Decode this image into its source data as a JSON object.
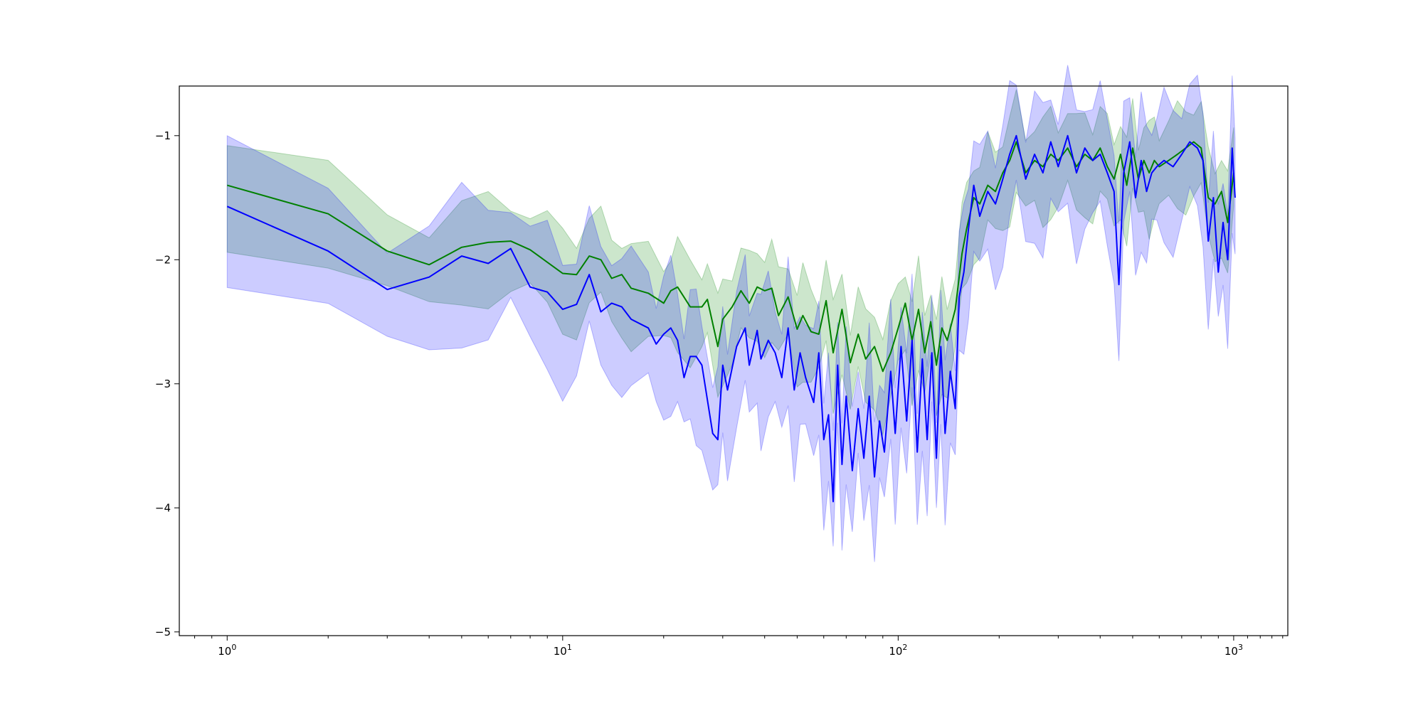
{
  "chart_data": {
    "type": "line",
    "title": "",
    "xlabel": "",
    "ylabel": "",
    "xscale": "log",
    "xlim": [
      0.72,
      1450
    ],
    "ylim": [
      -5.03,
      -0.6
    ],
    "grid": false,
    "legend": "none",
    "x_ticks": [
      {
        "value": 1,
        "base": "10",
        "exp": "0"
      },
      {
        "value": 10,
        "base": "10",
        "exp": "1"
      },
      {
        "value": 100,
        "base": "10",
        "exp": "2"
      },
      {
        "value": 1000,
        "base": "10",
        "exp": "3"
      }
    ],
    "y_ticks": [
      {
        "value": -1,
        "label": "−1"
      },
      {
        "value": -2,
        "label": "−2"
      },
      {
        "value": -3,
        "label": "−3"
      },
      {
        "value": -4,
        "label": "−4"
      },
      {
        "value": -5,
        "label": "−5"
      }
    ],
    "series": [
      {
        "color": "#008000",
        "band_color": "#008000",
        "band_opacity": 0.2,
        "band_width": 0.4,
        "points": [
          [
            1,
            -1.4
          ],
          [
            2,
            -1.63
          ],
          [
            3,
            -1.93
          ],
          [
            4,
            -2.04
          ],
          [
            5,
            -1.9
          ],
          [
            6,
            -1.86
          ],
          [
            7,
            -1.85
          ],
          [
            8,
            -1.92
          ],
          [
            9,
            -2.02
          ],
          [
            10,
            -2.11
          ],
          [
            11,
            -2.12
          ],
          [
            12,
            -1.97
          ],
          [
            13,
            -2.0
          ],
          [
            14,
            -2.15
          ],
          [
            15,
            -2.12
          ],
          [
            16,
            -2.23
          ],
          [
            18,
            -2.27
          ],
          [
            20,
            -2.35
          ],
          [
            21,
            -2.25
          ],
          [
            22,
            -2.22
          ],
          [
            24,
            -2.38
          ],
          [
            26,
            -2.38
          ],
          [
            27,
            -2.32
          ],
          [
            29,
            -2.7
          ],
          [
            30,
            -2.48
          ],
          [
            32,
            -2.38
          ],
          [
            34,
            -2.25
          ],
          [
            36,
            -2.35
          ],
          [
            38,
            -2.22
          ],
          [
            40,
            -2.25
          ],
          [
            42,
            -2.23
          ],
          [
            44,
            -2.45
          ],
          [
            47,
            -2.3
          ],
          [
            50,
            -2.56
          ],
          [
            52,
            -2.45
          ],
          [
            55,
            -2.58
          ],
          [
            58,
            -2.6
          ],
          [
            61,
            -2.33
          ],
          [
            64,
            -2.75
          ],
          [
            68,
            -2.4
          ],
          [
            72,
            -2.83
          ],
          [
            76,
            -2.6
          ],
          [
            80,
            -2.8
          ],
          [
            85,
            -2.7
          ],
          [
            90,
            -2.9
          ],
          [
            95,
            -2.75
          ],
          [
            100,
            -2.55
          ],
          [
            105,
            -2.35
          ],
          [
            110,
            -2.65
          ],
          [
            115,
            -2.4
          ],
          [
            120,
            -2.75
          ],
          [
            125,
            -2.5
          ],
          [
            130,
            -2.85
          ],
          [
            135,
            -2.55
          ],
          [
            140,
            -2.65
          ],
          [
            148,
            -2.4
          ],
          [
            155,
            -1.95
          ],
          [
            160,
            -1.75
          ],
          [
            168,
            -1.5
          ],
          [
            175,
            -1.55
          ],
          [
            185,
            -1.4
          ],
          [
            195,
            -1.45
          ],
          [
            205,
            -1.3
          ],
          [
            215,
            -1.2
          ],
          [
            225,
            -1.05
          ],
          [
            240,
            -1.3
          ],
          [
            255,
            -1.2
          ],
          [
            270,
            -1.25
          ],
          [
            285,
            -1.15
          ],
          [
            300,
            -1.2
          ],
          [
            320,
            -1.1
          ],
          [
            340,
            -1.25
          ],
          [
            360,
            -1.15
          ],
          [
            380,
            -1.2
          ],
          [
            400,
            -1.1
          ],
          [
            420,
            -1.25
          ],
          [
            440,
            -1.35
          ],
          [
            460,
            -1.15
          ],
          [
            480,
            -1.4
          ],
          [
            500,
            -1.1
          ],
          [
            520,
            -1.35
          ],
          [
            540,
            -1.2
          ],
          [
            560,
            -1.3
          ],
          [
            580,
            -1.2
          ],
          [
            600,
            -1.25
          ],
          [
            640,
            -1.2
          ],
          [
            680,
            -1.15
          ],
          [
            720,
            -1.1
          ],
          [
            760,
            -1.05
          ],
          [
            800,
            -1.1
          ],
          [
            840,
            -1.5
          ],
          [
            880,
            -1.55
          ],
          [
            920,
            -1.45
          ],
          [
            960,
            -1.7
          ],
          [
            1000,
            -1.3
          ]
        ]
      },
      {
        "color": "#0000ff",
        "band_color": "#0000ff",
        "band_opacity": 0.2,
        "band_width": 0.55,
        "points": [
          [
            1,
            -1.57
          ],
          [
            2,
            -1.93
          ],
          [
            3,
            -2.24
          ],
          [
            4,
            -2.14
          ],
          [
            5,
            -1.97
          ],
          [
            6,
            -2.03
          ],
          [
            7,
            -1.91
          ],
          [
            8,
            -2.22
          ],
          [
            9,
            -2.26
          ],
          [
            10,
            -2.4
          ],
          [
            11,
            -2.36
          ],
          [
            12,
            -2.12
          ],
          [
            13,
            -2.42
          ],
          [
            14,
            -2.35
          ],
          [
            15,
            -2.38
          ],
          [
            16,
            -2.48
          ],
          [
            18,
            -2.55
          ],
          [
            19,
            -2.68
          ],
          [
            20,
            -2.6
          ],
          [
            21,
            -2.55
          ],
          [
            22,
            -2.65
          ],
          [
            23,
            -2.95
          ],
          [
            24,
            -2.78
          ],
          [
            25,
            -2.78
          ],
          [
            26,
            -2.85
          ],
          [
            28,
            -3.4
          ],
          [
            29,
            -3.45
          ],
          [
            30,
            -2.85
          ],
          [
            31,
            -3.05
          ],
          [
            33,
            -2.7
          ],
          [
            35,
            -2.55
          ],
          [
            36,
            -2.85
          ],
          [
            38,
            -2.57
          ],
          [
            39,
            -2.8
          ],
          [
            41,
            -2.65
          ],
          [
            43,
            -2.75
          ],
          [
            45,
            -2.95
          ],
          [
            47,
            -2.55
          ],
          [
            49,
            -3.05
          ],
          [
            51,
            -2.75
          ],
          [
            53,
            -2.95
          ],
          [
            56,
            -3.15
          ],
          [
            58,
            -2.75
          ],
          [
            60,
            -3.45
          ],
          [
            62,
            -3.25
          ],
          [
            64,
            -3.95
          ],
          [
            66,
            -2.85
          ],
          [
            68,
            -3.65
          ],
          [
            70,
            -3.1
          ],
          [
            73,
            -3.7
          ],
          [
            76,
            -3.2
          ],
          [
            79,
            -3.6
          ],
          [
            82,
            -3.1
          ],
          [
            85,
            -3.75
          ],
          [
            88,
            -3.3
          ],
          [
            91,
            -3.55
          ],
          [
            95,
            -2.9
          ],
          [
            98,
            -3.4
          ],
          [
            102,
            -2.7
          ],
          [
            106,
            -3.3
          ],
          [
            110,
            -2.65
          ],
          [
            114,
            -3.55
          ],
          [
            118,
            -2.8
          ],
          [
            122,
            -3.45
          ],
          [
            126,
            -2.75
          ],
          [
            130,
            -3.6
          ],
          [
            134,
            -2.7
          ],
          [
            138,
            -3.4
          ],
          [
            143,
            -2.9
          ],
          [
            148,
            -3.2
          ],
          [
            152,
            -2.3
          ],
          [
            157,
            -2.1
          ],
          [
            162,
            -1.75
          ],
          [
            168,
            -1.4
          ],
          [
            175,
            -1.65
          ],
          [
            185,
            -1.45
          ],
          [
            195,
            -1.55
          ],
          [
            205,
            -1.35
          ],
          [
            215,
            -1.15
          ],
          [
            225,
            -1.0
          ],
          [
            240,
            -1.35
          ],
          [
            255,
            -1.15
          ],
          [
            270,
            -1.3
          ],
          [
            285,
            -1.05
          ],
          [
            300,
            -1.25
          ],
          [
            320,
            -1.0
          ],
          [
            340,
            -1.3
          ],
          [
            360,
            -1.1
          ],
          [
            380,
            -1.2
          ],
          [
            400,
            -1.15
          ],
          [
            420,
            -1.3
          ],
          [
            440,
            -1.45
          ],
          [
            455,
            -2.2
          ],
          [
            470,
            -1.3
          ],
          [
            490,
            -1.05
          ],
          [
            510,
            -1.5
          ],
          [
            530,
            -1.2
          ],
          [
            550,
            -1.45
          ],
          [
            570,
            -1.3
          ],
          [
            590,
            -1.25
          ],
          [
            620,
            -1.2
          ],
          [
            660,
            -1.25
          ],
          [
            700,
            -1.15
          ],
          [
            740,
            -1.05
          ],
          [
            780,
            -1.1
          ],
          [
            810,
            -1.2
          ],
          [
            840,
            -1.85
          ],
          [
            870,
            -1.5
          ],
          [
            900,
            -2.1
          ],
          [
            930,
            -1.7
          ],
          [
            960,
            -2.0
          ],
          [
            990,
            -1.1
          ],
          [
            1010,
            -1.5
          ]
        ]
      }
    ]
  }
}
